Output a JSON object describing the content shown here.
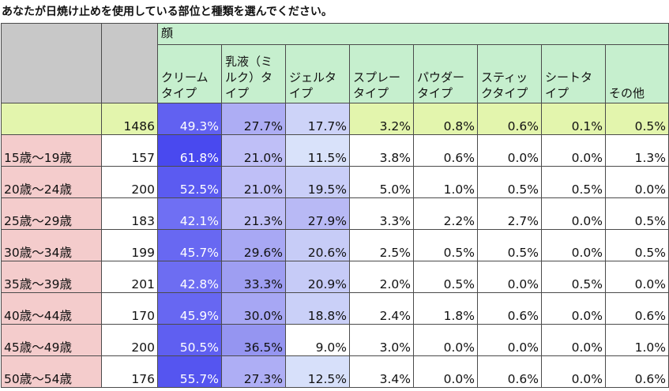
{
  "title": "あなたが日焼け止めを使用している部位と種類を選んでください。",
  "table": {
    "group_label": "顔",
    "columns": [
      "クリームタイプ",
      "乳液（ミルク）タイプ",
      "ジェルタイプ",
      "スプレータイプ",
      "パウダータイプ",
      "スティックタイプ",
      "シートタイプ",
      "その他"
    ],
    "total_row": {
      "n": "1486",
      "values": [
        "49.3%",
        "27.7%",
        "17.7%",
        "3.2%",
        "0.8%",
        "0.6%",
        "0.1%",
        "0.5%"
      ]
    },
    "rows": [
      {
        "label": "15歳～19歳",
        "n": "157",
        "values": [
          "61.8%",
          "21.0%",
          "11.5%",
          "3.8%",
          "0.6%",
          "0.0%",
          "0.0%",
          "1.3%"
        ]
      },
      {
        "label": "20歳～24歳",
        "n": "200",
        "values": [
          "52.5%",
          "21.0%",
          "19.5%",
          "5.0%",
          "1.0%",
          "0.5%",
          "0.5%",
          "0.0%"
        ]
      },
      {
        "label": "25歳～29歳",
        "n": "183",
        "values": [
          "42.1%",
          "21.3%",
          "27.9%",
          "3.3%",
          "2.2%",
          "2.7%",
          "0.0%",
          "0.5%"
        ]
      },
      {
        "label": "30歳～34歳",
        "n": "199",
        "values": [
          "45.7%",
          "29.6%",
          "20.6%",
          "2.5%",
          "0.5%",
          "0.5%",
          "0.0%",
          "0.5%"
        ]
      },
      {
        "label": "35歳～39歳",
        "n": "201",
        "values": [
          "42.8%",
          "33.3%",
          "20.9%",
          "2.0%",
          "0.5%",
          "0.0%",
          "0.5%",
          "0.0%"
        ]
      },
      {
        "label": "40歳～44歳",
        "n": "170",
        "values": [
          "45.9%",
          "30.0%",
          "18.8%",
          "2.4%",
          "1.8%",
          "0.6%",
          "0.0%",
          "0.6%"
        ]
      },
      {
        "label": "45歳～49歳",
        "n": "200",
        "values": [
          "50.5%",
          "36.5%",
          "9.0%",
          "3.0%",
          "0.0%",
          "0.0%",
          "0.0%",
          "1.0%"
        ]
      },
      {
        "label": "50歳～54歳",
        "n": "176",
        "values": [
          "55.7%",
          "27.3%",
          "12.5%",
          "3.4%",
          "0.0%",
          "0.6%",
          "0.0%",
          "0.6%"
        ]
      }
    ]
  },
  "colors": {
    "header_bg": "#c6efce",
    "label_bg": "#f4cccc",
    "gray_bg": "#c8c8c8",
    "total_row_bg": "#e3f5ad",
    "heat_high": "#4343ee",
    "heat_low": "#ffffff",
    "heat_text_dark": "#ffffff",
    "heat_text_light": "#111111"
  },
  "chart_data": {
    "type": "table",
    "title": "あなたが日焼け止めを使用している部位と種類を選んでください。",
    "columns": [
      "クリームタイプ",
      "乳液（ミルク）タイプ",
      "ジェルタイプ",
      "スプレータイプ",
      "パウダータイプ",
      "スティックタイプ",
      "シートタイプ",
      "その他"
    ],
    "row_labels": [
      "",
      "15歳～19歳",
      "20歳～24歳",
      "25歳～29歳",
      "30歳～34歳",
      "35歳～39歳",
      "40歳～44歳",
      "45歳～49歳",
      "50歳～54歳"
    ],
    "n": [
      1486,
      157,
      200,
      183,
      199,
      201,
      170,
      200,
      176
    ],
    "values": [
      [
        49.3,
        27.7,
        17.7,
        3.2,
        0.8,
        0.6,
        0.1,
        0.5
      ],
      [
        61.8,
        21.0,
        11.5,
        3.8,
        0.6,
        0.0,
        0.0,
        1.3
      ],
      [
        52.5,
        21.0,
        19.5,
        5.0,
        1.0,
        0.5,
        0.5,
        0.0
      ],
      [
        42.1,
        21.3,
        27.9,
        3.3,
        2.2,
        2.7,
        0.0,
        0.5
      ],
      [
        45.7,
        29.6,
        20.6,
        2.5,
        0.5,
        0.5,
        0.0,
        0.5
      ],
      [
        42.8,
        33.3,
        20.9,
        2.0,
        0.5,
        0.0,
        0.5,
        0.0
      ],
      [
        45.9,
        30.0,
        18.8,
        2.4,
        1.8,
        0.6,
        0.0,
        0.6
      ],
      [
        50.5,
        36.5,
        9.0,
        3.0,
        0.0,
        0.0,
        0.0,
        1.0
      ],
      [
        55.7,
        27.3,
        12.5,
        3.4,
        0.0,
        0.6,
        0.0,
        0.6
      ]
    ],
    "unit": "%"
  }
}
